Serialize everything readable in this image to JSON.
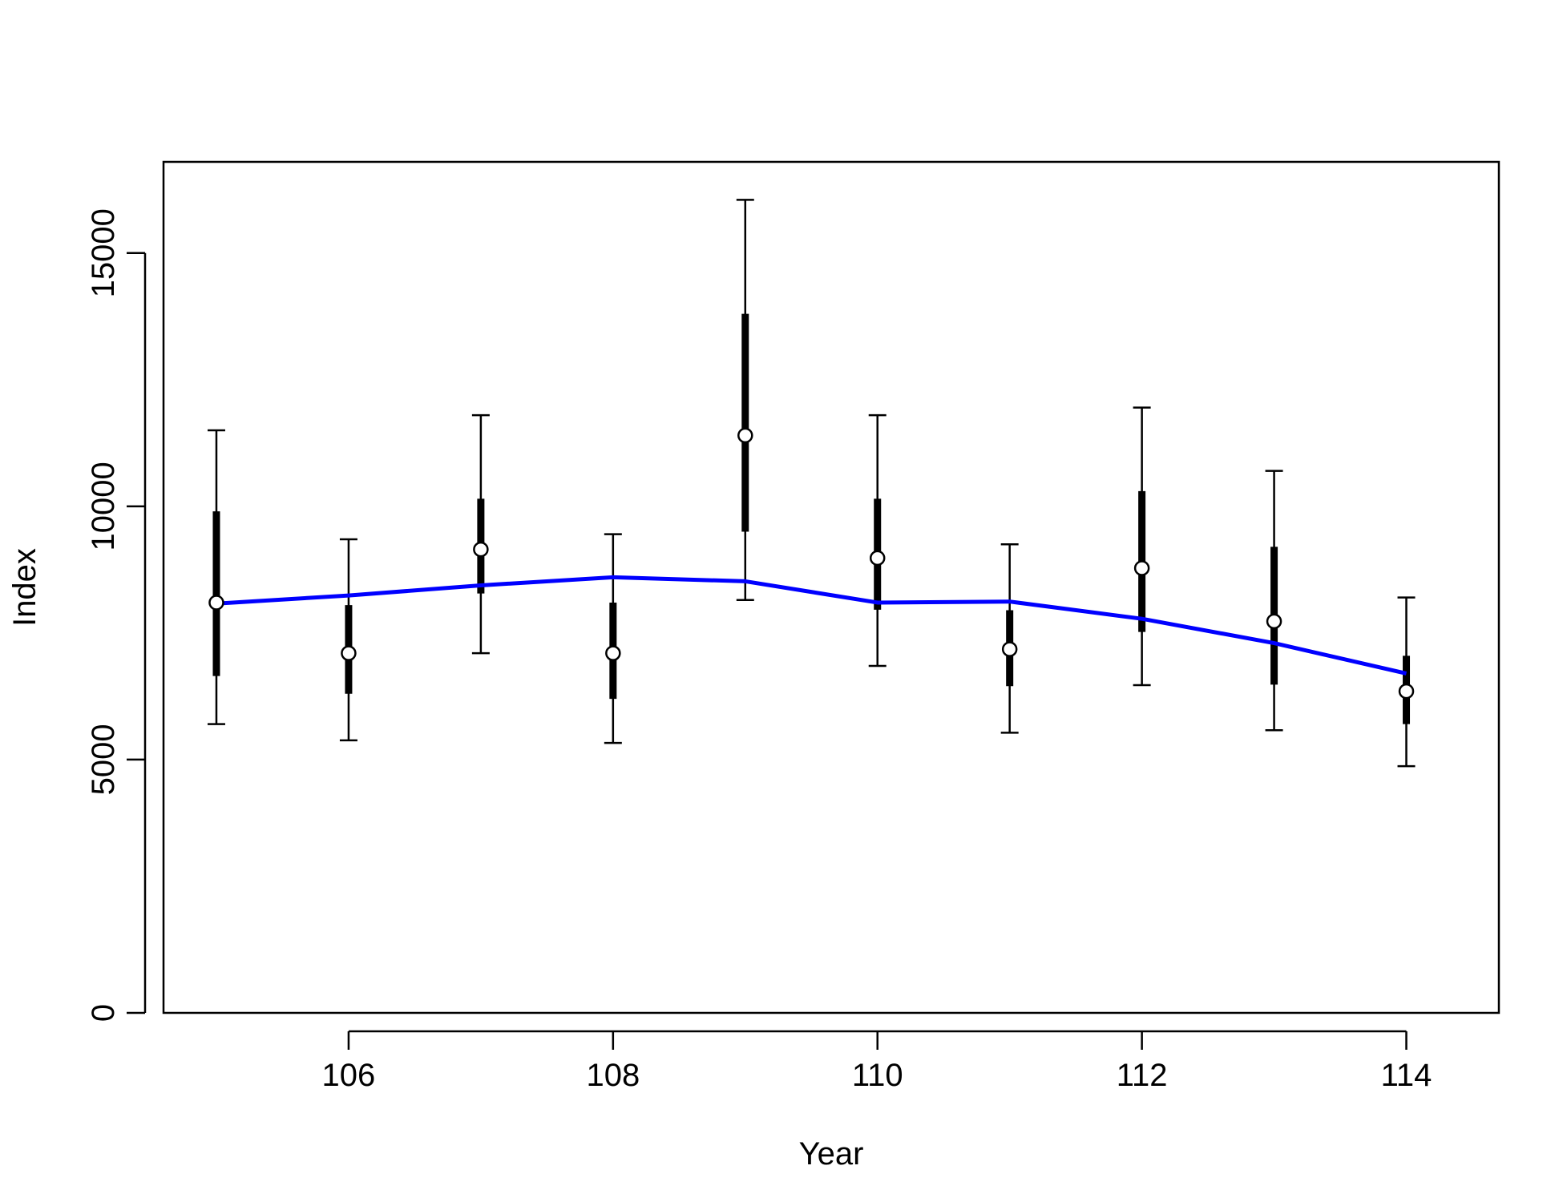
{
  "chart_data": {
    "type": "line",
    "title": "",
    "xlabel": "Year",
    "ylabel": "Index",
    "xlim": [
      104.6,
      114.7
    ],
    "ylim": [
      0,
      16800
    ],
    "x_ticks": [
      106,
      108,
      110,
      112,
      114
    ],
    "y_ticks": [
      0,
      5000,
      10000,
      15000
    ],
    "grid": false,
    "legend": "none",
    "x": [
      105,
      106,
      107,
      108,
      109,
      110,
      111,
      112,
      113,
      114
    ],
    "series": [
      {
        "kind": "points",
        "marker_color": "#ffffff",
        "values": [
          8100,
          7100,
          9150,
          7100,
          11400,
          8980,
          7180,
          8780,
          7730,
          6350
        ]
      },
      {
        "kind": "line",
        "color": "#0000ff",
        "values": [
          8080,
          8240,
          8440,
          8600,
          8520,
          8100,
          8120,
          7780,
          7300,
          6700
        ]
      }
    ],
    "intervals_inner": {
      "color": "#000000",
      "low": [
        6650,
        6300,
        8280,
        6200,
        9500,
        7960,
        6450,
        7520,
        6480,
        5700
      ],
      "high": [
        9900,
        8050,
        10150,
        8100,
        13800,
        10150,
        7950,
        10300,
        9200,
        7050
      ]
    },
    "intervals_outer": {
      "color": "#000000",
      "low": [
        5700,
        5380,
        7100,
        5330,
        8150,
        6850,
        5530,
        6470,
        5580,
        4870
      ],
      "high": [
        11500,
        9350,
        11800,
        9450,
        16050,
        11800,
        9250,
        11950,
        10700,
        8200
      ]
    }
  }
}
